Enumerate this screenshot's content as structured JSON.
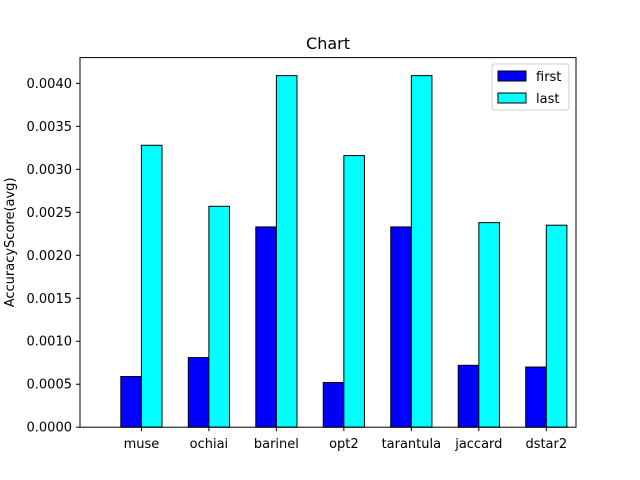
{
  "chart_data": {
    "type": "bar",
    "title": "Chart",
    "xlabel": "",
    "ylabel": "AccuracyScore(avg)",
    "categories": [
      "muse",
      "ochiai",
      "barinel",
      "opt2",
      "tarantula",
      "jaccard",
      "dstar2"
    ],
    "series": [
      {
        "name": "first",
        "color": "#0000ff",
        "values": [
          0.00059,
          0.00081,
          0.00233,
          0.00052,
          0.00233,
          0.00072,
          0.0007
        ]
      },
      {
        "name": "last",
        "color": "#00ffff",
        "values": [
          0.00328,
          0.00257,
          0.00409,
          0.00316,
          0.00409,
          0.00238,
          0.00235
        ]
      }
    ],
    "ylim": [
      0,
      0.0043
    ],
    "yticks": [
      "0.0000",
      "0.0005",
      "0.0010",
      "0.0015",
      "0.0020",
      "0.0025",
      "0.0030",
      "0.0035",
      "0.0040"
    ],
    "grid": false,
    "legend_position": "top-right"
  }
}
